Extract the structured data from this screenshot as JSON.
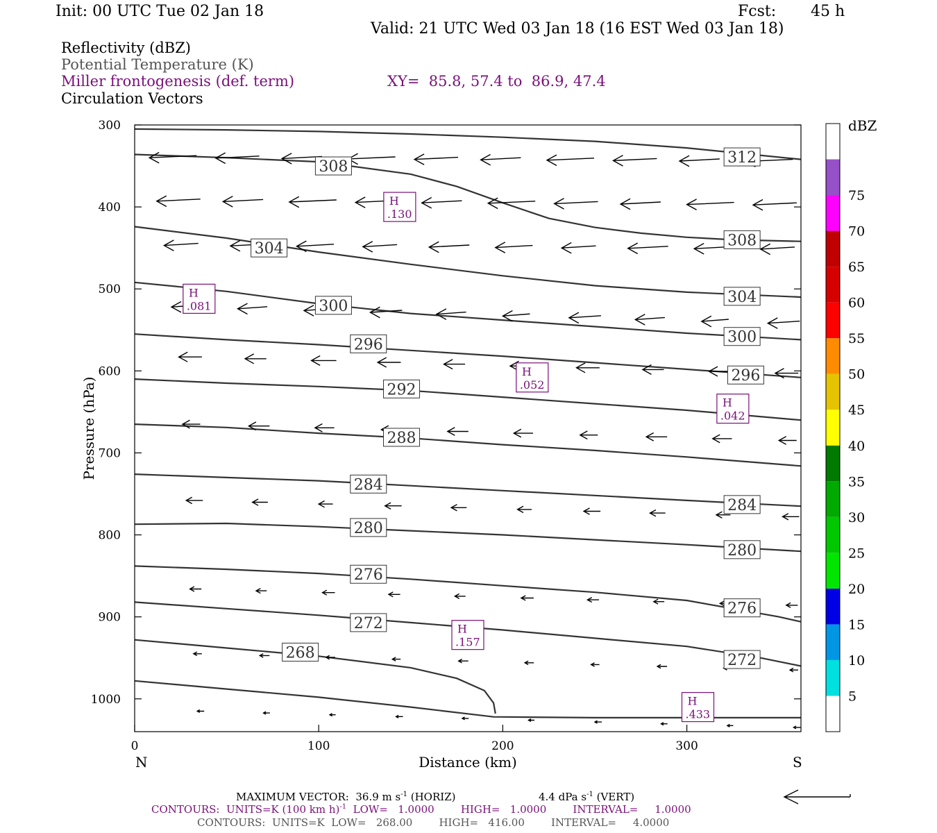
{
  "header": {
    "init": "Init: 00 UTC Tue 02 Jan 18",
    "fcst_label": "Fcst:",
    "fcst_value": "45 h",
    "valid": "Valid: 21 UTC Wed 03 Jan 18 (16 EST Wed 03 Jan 18)"
  },
  "fields": {
    "reflectivity": "Reflectivity (dBZ)",
    "theta": "Potential Temperature (K)",
    "frontogenesis": "Miller frontogenesis (def. term)",
    "xy": "XY=  85.8, 57.4 to  86.9, 47.4",
    "vectors": "Circulation Vectors"
  },
  "footer": {
    "max_vector": "MAXIMUM VECTOR:  36.9 m s",
    "max_vector_sup": "-1",
    "max_vector_h": " (HORIZ)",
    "max_vector_v": "4.4 dPa s",
    "max_vector_v_sup": "-1",
    "max_vector_v_tail": " (VERT)",
    "contours1": "CONTOURS:  UNITS=K (100 km h)",
    "contours1_sup": "-1",
    "contours1_tail": "  LOW=   1.0000        HIGH=   1.0000        INTERVAL=     1.0000",
    "contours2": "CONTOURS:  UNITS=K  LOW=   268.00        HIGH=   416.00        INTERVAL=     4.0000"
  },
  "colors": {
    "contour": "#333333",
    "fronto": "#7a0f7a",
    "colorbar": [
      "#ffffff",
      "#00e0e0",
      "#0096e6",
      "#0000e6",
      "#00e600",
      "#00c800",
      "#00aa00",
      "#007a00",
      "#ffff00",
      "#e6c300",
      "#ff8c00",
      "#ff0000",
      "#d70000",
      "#c00000",
      "#ff00ff",
      "#9650c8",
      "#ffffff"
    ]
  },
  "colorbar": {
    "unit": "dBZ",
    "labels": [
      "5",
      "10",
      "15",
      "20",
      "25",
      "30",
      "35",
      "40",
      "45",
      "50",
      "55",
      "60",
      "65",
      "70",
      "75"
    ]
  },
  "chart_data": {
    "type": "cross-section",
    "xlabel": "Distance (km)",
    "ylabel": "Pressure (hPa)",
    "x_ticks": [
      "0",
      "100",
      "200",
      "300"
    ],
    "y_ticks": [
      "300",
      "400",
      "500",
      "600",
      "700",
      "800",
      "900",
      "1000"
    ],
    "xlim": [
      0,
      362
    ],
    "ylim": [
      300,
      1040
    ],
    "left_end": "N",
    "right_end": "S",
    "theta_contours": [
      {
        "label": "312",
        "x": [
          0,
          50,
          100,
          150,
          200,
          250,
          300,
          362
        ],
        "y": [
          305,
          306,
          308,
          311,
          315,
          320,
          328,
          342
        ],
        "labels_at": [
          [
            330,
            339
          ]
        ]
      },
      {
        "label": "308",
        "x": [
          0,
          50,
          100,
          150,
          175,
          200,
          225,
          250,
          275,
          300,
          325,
          362
        ],
        "y": [
          336,
          340,
          345,
          360,
          375,
          395,
          414,
          425,
          432,
          437,
          440,
          442
        ],
        "labels_at": [
          [
            108,
            350
          ],
          [
            330,
            440
          ]
        ]
      },
      {
        "label": "304",
        "x": [
          0,
          50,
          100,
          150,
          200,
          250,
          300,
          362
        ],
        "y": [
          424,
          438,
          455,
          470,
          484,
          496,
          504,
          510
        ],
        "labels_at": [
          [
            73,
            450
          ],
          [
            330,
            509
          ]
        ]
      },
      {
        "label": "300",
        "x": [
          0,
          50,
          100,
          150,
          200,
          250,
          300,
          362
        ],
        "y": [
          492,
          503,
          518,
          530,
          538,
          546,
          554,
          562
        ],
        "labels_at": [
          [
            108,
            520
          ],
          [
            330,
            558
          ]
        ]
      },
      {
        "label": "296",
        "x": [
          0,
          50,
          100,
          150,
          200,
          250,
          300,
          362
        ],
        "y": [
          555,
          562,
          568,
          575,
          582,
          590,
          598,
          608
        ],
        "labels_at": [
          [
            127,
            567
          ],
          [
            332,
            605
          ]
        ]
      },
      {
        "label": "292",
        "x": [
          0,
          50,
          100,
          150,
          200,
          250,
          300,
          362
        ],
        "y": [
          610,
          615,
          619,
          624,
          632,
          640,
          648,
          660
        ],
        "labels_at": [
          [
            145,
            622
          ]
        ]
      },
      {
        "label": "288",
        "x": [
          0,
          50,
          100,
          150,
          200,
          250,
          300,
          362
        ],
        "y": [
          665,
          669,
          676,
          682,
          690,
          697,
          705,
          716
        ],
        "labels_at": [
          [
            145,
            681
          ]
        ]
      },
      {
        "label": "284",
        "x": [
          0,
          50,
          100,
          150,
          200,
          250,
          300,
          362
        ],
        "y": [
          726,
          730,
          734,
          740,
          746,
          752,
          758,
          765
        ],
        "labels_at": [
          [
            127,
            738
          ],
          [
            330,
            763
          ]
        ]
      },
      {
        "label": "280",
        "x": [
          0,
          50,
          100,
          150,
          200,
          250,
          300,
          362
        ],
        "y": [
          787,
          786,
          790,
          795,
          800,
          806,
          812,
          820
        ],
        "labels_at": [
          [
            127,
            791
          ],
          [
            330,
            818
          ]
        ]
      },
      {
        "label": "276",
        "x": [
          0,
          50,
          100,
          150,
          200,
          250,
          300,
          350,
          362
        ],
        "y": [
          838,
          842,
          847,
          854,
          862,
          870,
          880,
          900,
          906
        ],
        "labels_at": [
          [
            127,
            848
          ],
          [
            330,
            889
          ]
        ]
      },
      {
        "label": "272",
        "x": [
          0,
          50,
          100,
          150,
          200,
          250,
          300,
          340,
          362
        ],
        "y": [
          882,
          890,
          898,
          907,
          916,
          926,
          936,
          950,
          960
        ],
        "labels_at": [
          [
            127,
            907
          ],
          [
            330,
            952
          ]
        ]
      },
      {
        "label": "268",
        "x": [
          0,
          50,
          100,
          150,
          175,
          190,
          195,
          196
        ],
        "y": [
          928,
          938,
          948,
          962,
          975,
          990,
          1005,
          1018
        ],
        "labels_at": [
          [
            90,
            943
          ]
        ]
      },
      {
        "label": "",
        "x": [
          0,
          50,
          100,
          150,
          195,
          250,
          300,
          362
        ],
        "y": [
          978,
          988,
          998,
          1010,
          1022,
          1023,
          1023,
          1023
        ],
        "labels_at": []
      }
    ],
    "frontogenesis_maxima": [
      {
        "label": "H",
        "value": ".130",
        "x": 144,
        "y": 400
      },
      {
        "label": "H",
        "value": ".081",
        "x": 35,
        "y": 512
      },
      {
        "label": "H",
        "value": ".052",
        "x": 216,
        "y": 608
      },
      {
        "label": "H",
        "value": ".042",
        "x": 325,
        "y": 646
      },
      {
        "label": "H",
        "value": ".157",
        "x": 181,
        "y": 922
      },
      {
        "label": "H",
        "value": ".433",
        "x": 306,
        "y": 1010
      }
    ]
  }
}
